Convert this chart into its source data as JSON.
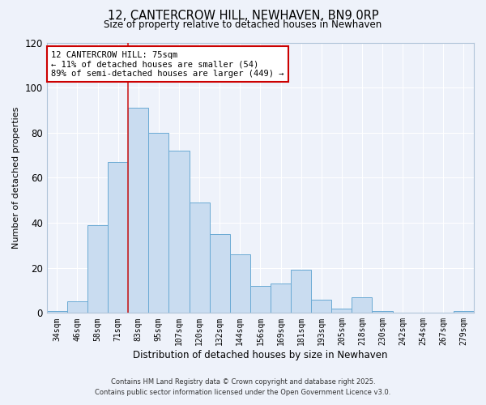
{
  "title": "12, CANTERCROW HILL, NEWHAVEN, BN9 0RP",
  "subtitle": "Size of property relative to detached houses in Newhaven",
  "xlabel": "Distribution of detached houses by size in Newhaven",
  "ylabel": "Number of detached properties",
  "bar_labels": [
    "34sqm",
    "46sqm",
    "58sqm",
    "71sqm",
    "83sqm",
    "95sqm",
    "107sqm",
    "120sqm",
    "132sqm",
    "144sqm",
    "156sqm",
    "169sqm",
    "181sqm",
    "193sqm",
    "205sqm",
    "218sqm",
    "230sqm",
    "242sqm",
    "254sqm",
    "267sqm",
    "279sqm"
  ],
  "bar_values": [
    1,
    5,
    39,
    67,
    91,
    80,
    72,
    49,
    35,
    26,
    12,
    13,
    19,
    6,
    2,
    7,
    1,
    0,
    0,
    0,
    1
  ],
  "bar_color": "#c9dcf0",
  "bar_edge_color": "#6aaad4",
  "background_color": "#eef2fa",
  "plot_bg_color": "#eef2fa",
  "grid_color": "#ffffff",
  "ylim": [
    0,
    120
  ],
  "yticks": [
    0,
    20,
    40,
    60,
    80,
    100,
    120
  ],
  "property_label": "12 CANTERCROW HILL: 75sqm",
  "smaller_pct": "11%",
  "smaller_count": 54,
  "larger_pct": "89%",
  "larger_count": 449,
  "annotation_box_color": "#ffffff",
  "annotation_box_edge": "#cc0000",
  "red_line_color": "#cc2222",
  "footnote1": "Contains HM Land Registry data © Crown copyright and database right 2025.",
  "footnote2": "Contains public sector information licensed under the Open Government Licence v3.0."
}
